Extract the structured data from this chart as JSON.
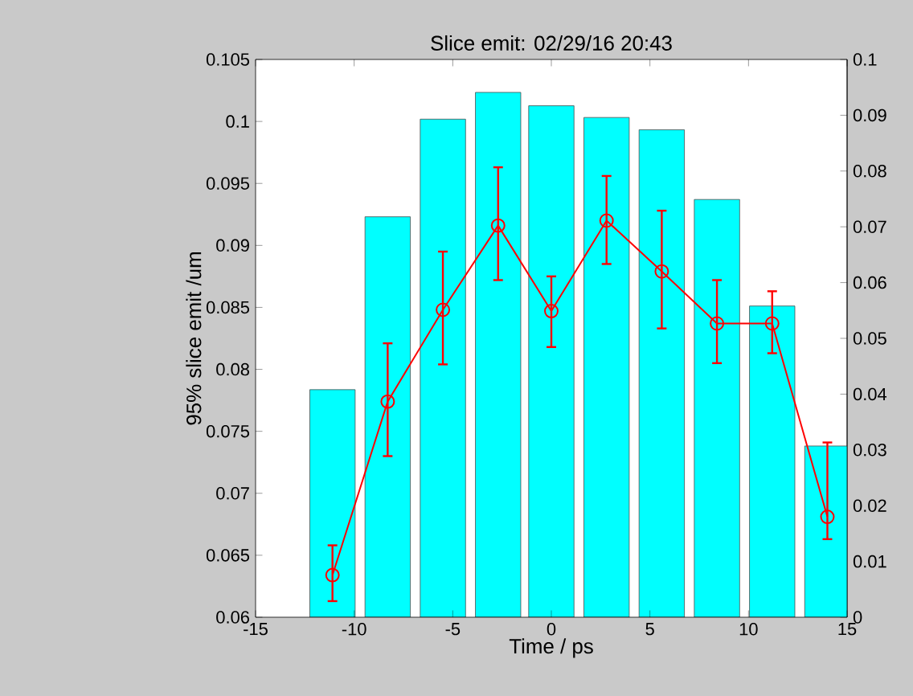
{
  "chart_data": {
    "type": "bar",
    "title": "Slice emit: 02/29/16 20:43",
    "xlabel": "Time / ps",
    "ylabel": "95% slice emit /um",
    "x": [
      -11.1,
      -8.3,
      -5.5,
      -2.7,
      0.0,
      2.8,
      5.6,
      8.4,
      11.2,
      14.0
    ],
    "xlim": [
      -15,
      15
    ],
    "xticks": [
      -15,
      -10,
      -5,
      0,
      5,
      10,
      15
    ],
    "ylim": [
      0.06,
      0.105
    ],
    "yticks": [
      0.06,
      0.065,
      0.07,
      0.075,
      0.08,
      0.085,
      0.09,
      0.095,
      0.1,
      0.105
    ],
    "y2lim": [
      0,
      0.1
    ],
    "y2ticks": [
      0,
      0.01,
      0.02,
      0.03,
      0.04,
      0.05,
      0.06,
      0.07,
      0.08,
      0.09,
      0.1
    ],
    "marker": "circle",
    "series": [
      {
        "axis": "y2",
        "color": "#00ffff",
        "values": [
          0.0408,
          0.0718,
          0.0893,
          0.0941,
          0.0917,
          0.0896,
          0.0874,
          0.0749,
          0.0558,
          0.0307
        ]
      },
      {
        "type": "line",
        "color": "#ff0000",
        "values": [
          0.0634,
          0.0774,
          0.0848,
          0.0916,
          0.0847,
          0.092,
          0.0879,
          0.0837,
          0.0837,
          0.0681
        ],
        "errors": [
          [
            0.0613,
            0.0658
          ],
          [
            0.073,
            0.0821
          ],
          [
            0.0804,
            0.0895
          ],
          [
            0.0872,
            0.0963
          ],
          [
            0.0818,
            0.0875
          ],
          [
            0.0885,
            0.0956
          ],
          [
            0.0833,
            0.0928
          ],
          [
            0.0805,
            0.0872
          ],
          [
            0.0813,
            0.0863
          ],
          [
            0.0663,
            0.0741
          ]
        ]
      }
    ]
  }
}
